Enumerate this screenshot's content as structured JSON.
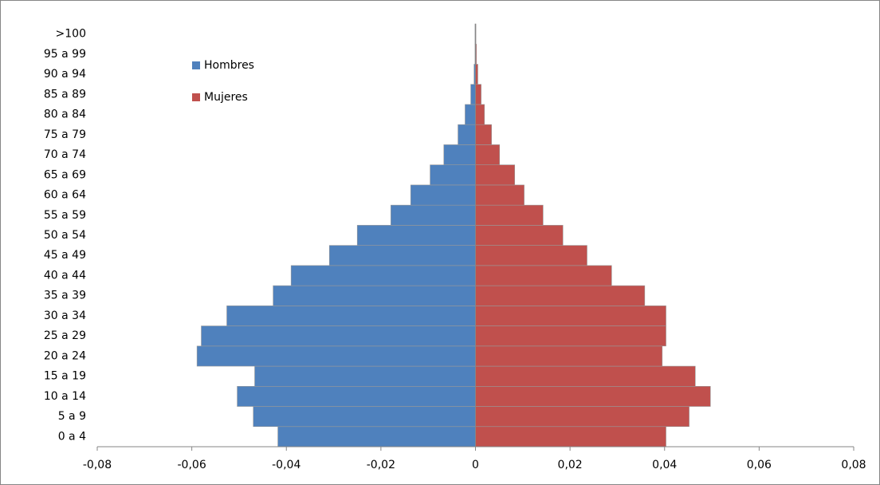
{
  "chart_data": {
    "type": "bar",
    "orientation": "horizontal",
    "categories": [
      "0 a 4",
      "5 a 9",
      "10 a 14",
      "15 a 19",
      "20 a 24",
      "25 a 29",
      "30 a 34",
      "35 a 39",
      "40 a 44",
      "45 a 49",
      "50 a 54",
      "55 a 59",
      "60 a 64",
      "65 a 69",
      "70 a 74",
      "75 a 79",
      "80 a 84",
      "85 a 89",
      "90 a 94",
      "95 a 99",
      ">100"
    ],
    "series": [
      {
        "name": "Hombres",
        "color": "#4f81bd",
        "values": [
          -0.0418,
          -0.047,
          -0.0504,
          -0.0467,
          -0.0589,
          -0.058,
          -0.0526,
          -0.0428,
          -0.039,
          -0.0309,
          -0.025,
          -0.0179,
          -0.0137,
          -0.0096,
          -0.0067,
          -0.0037,
          -0.0022,
          -0.001,
          -0.0003,
          -0.0001,
          -0.0001
        ]
      },
      {
        "name": "Mujeres",
        "color": "#c0504d",
        "values": [
          0.0403,
          0.0452,
          0.0497,
          0.0465,
          0.0395,
          0.0403,
          0.0403,
          0.0358,
          0.0288,
          0.0236,
          0.0185,
          0.0143,
          0.0103,
          0.0083,
          0.0051,
          0.0034,
          0.0019,
          0.0012,
          0.0005,
          0.0002,
          0.0001
        ]
      }
    ],
    "xlim": [
      -0.08,
      0.08
    ],
    "xticks": [
      {
        "value": -0.08,
        "label": "-0,08"
      },
      {
        "value": -0.06,
        "label": "-0,06"
      },
      {
        "value": -0.04,
        "label": "-0,04"
      },
      {
        "value": -0.02,
        "label": "-0,02"
      },
      0,
      {
        "value": 0.02,
        "label": "0,02"
      },
      {
        "value": 0.04,
        "label": "0,04"
      },
      {
        "value": 0.06,
        "label": "0,06"
      },
      {
        "value": 0.08,
        "label": "0,08"
      }
    ]
  }
}
